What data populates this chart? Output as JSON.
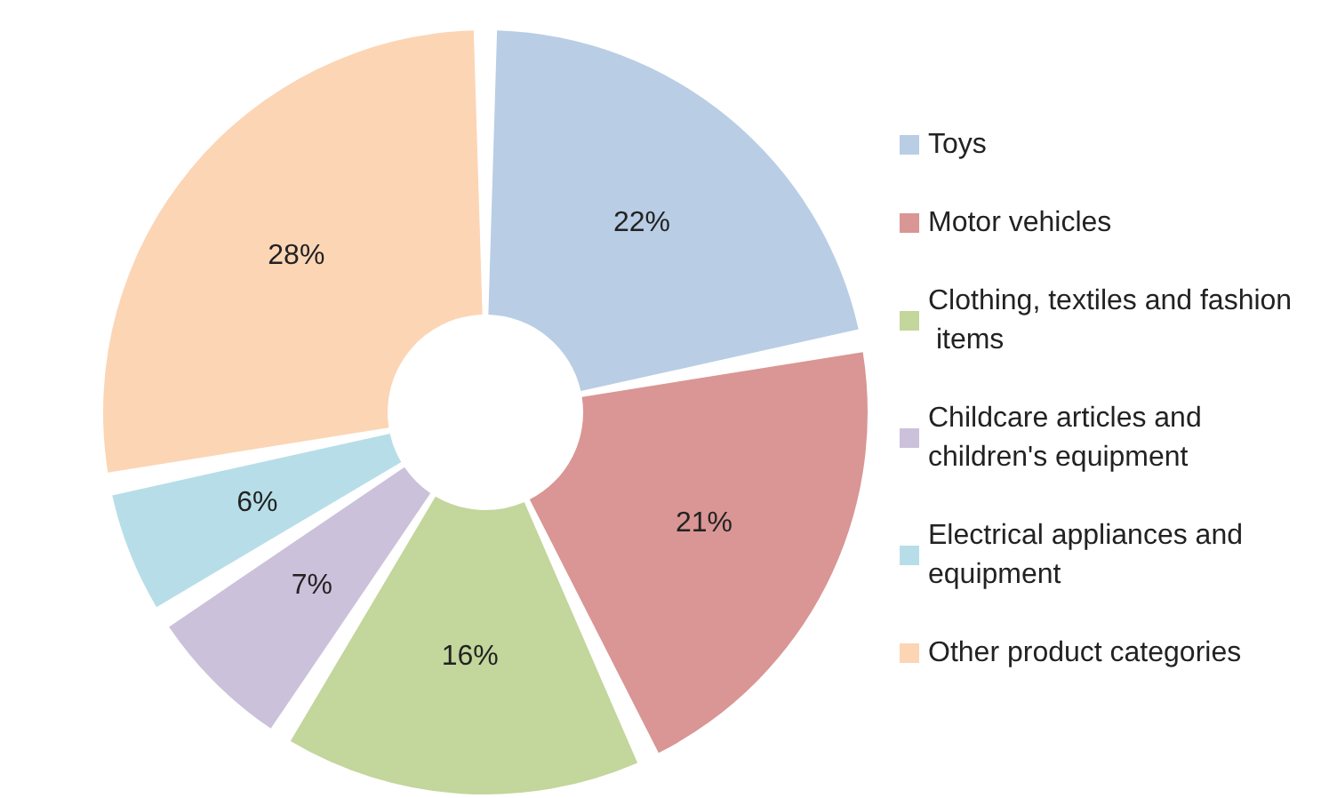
{
  "chart_data": {
    "type": "donut",
    "categories": [
      "Toys",
      "Motor vehicles",
      "Clothing, textiles and fashion items",
      "Childcare articles and children's equipment",
      "Electrical appliances and equipment",
      "Other product categories"
    ],
    "values": [
      22,
      21,
      16,
      7,
      6,
      28
    ],
    "colors": [
      "#b9cde5",
      "#d99694",
      "#c3d69b",
      "#ccc1da",
      "#b7dee8",
      "#fcd5b5"
    ],
    "value_labels": [
      "22%",
      "21%",
      "16%",
      "7%",
      "6%",
      "28%"
    ],
    "legend": "right"
  }
}
